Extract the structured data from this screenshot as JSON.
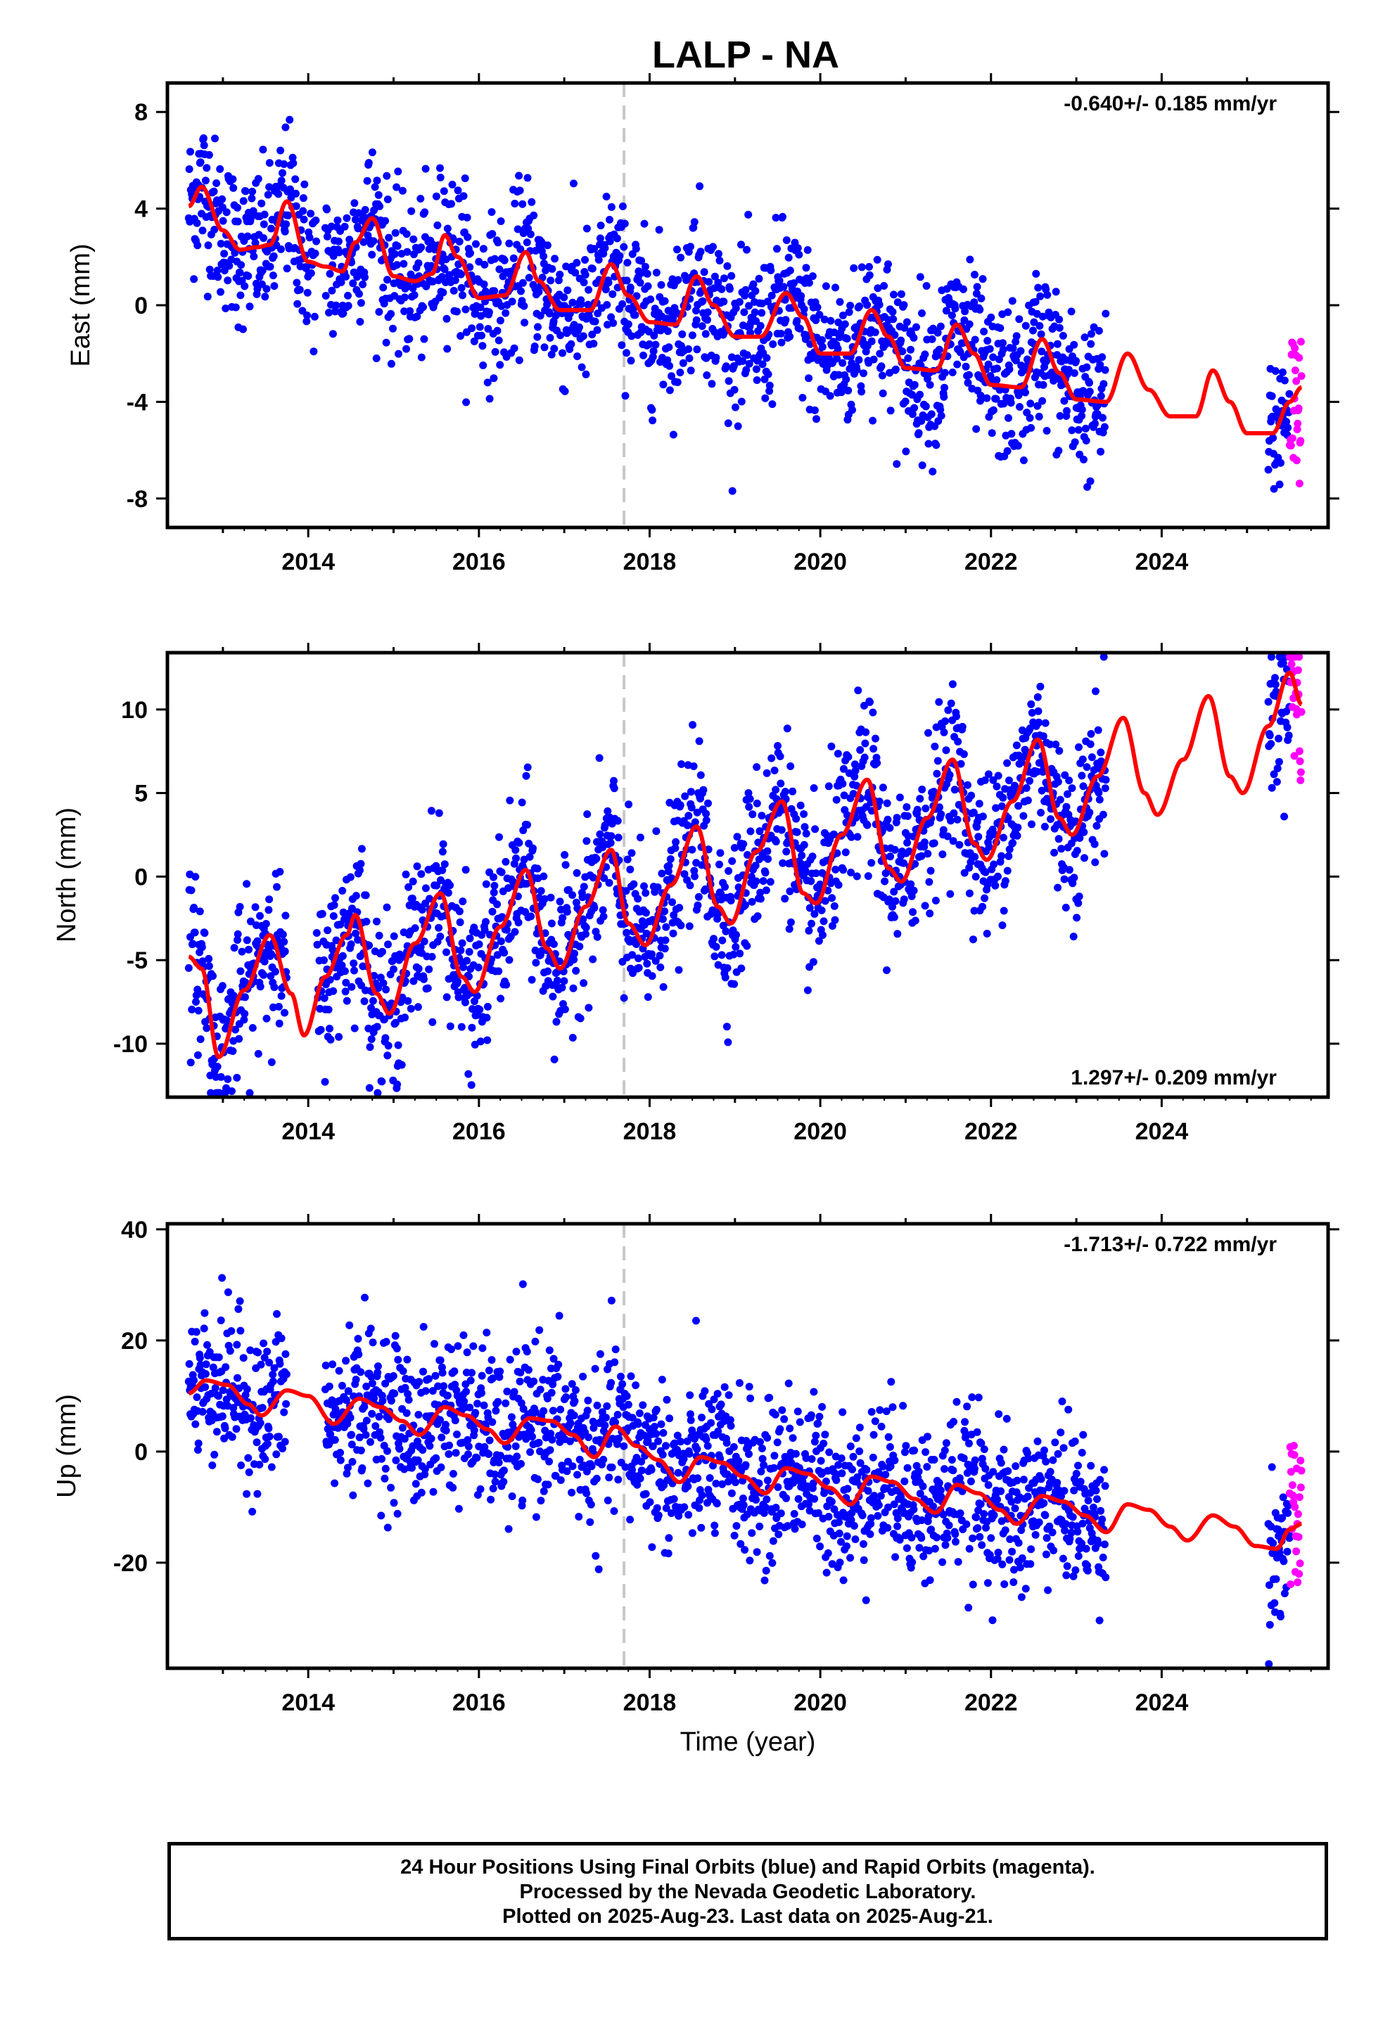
{
  "title": "LALP - NA",
  "xlabel": "Time (year)",
  "footer": {
    "line1": "24 Hour Positions Using Final Orbits (blue) and Rapid Orbits (magenta).",
    "line2": "Processed by the Nevada Geodetic Laboratory.",
    "line3": "Plotted on 2025-Aug-23. Last data on 2025-Aug-21."
  },
  "colors": {
    "final": "#0000ff",
    "rapid": "#ff00ff",
    "model": "#ff0000",
    "event_line": "#c8c8c8"
  },
  "chart_data": [
    {
      "type": "scatter",
      "component": "east",
      "ylabel": "East (mm)",
      "rate_label": "-0.640+/- 0.185 mm/yr",
      "xlim": [
        2012.35,
        2025.95
      ],
      "ylim": [
        -9.2,
        9.2
      ],
      "xticks": [
        2014,
        2016,
        2018,
        2020,
        2022,
        2024
      ],
      "yticks": [
        -8,
        -4,
        0,
        4,
        8
      ],
      "event_line_x": 2017.7,
      "data_ranges": [
        [
          2012.6,
          2014.1
        ],
        [
          2014.2,
          2023.35
        ],
        [
          2025.25,
          2025.64
        ]
      ],
      "rapid_range": [
        2025.5,
        2025.64
      ],
      "model_nodes": [
        [
          2012.6,
          4.1
        ],
        [
          2012.75,
          4.9
        ],
        [
          2013.0,
          3.1
        ],
        [
          2013.2,
          2.3
        ],
        [
          2013.4,
          2.4
        ],
        [
          2013.55,
          2.5
        ],
        [
          2013.75,
          4.3
        ],
        [
          2014.0,
          1.8
        ],
        [
          2014.2,
          1.6
        ],
        [
          2014.4,
          1.4
        ],
        [
          2014.55,
          2.6
        ],
        [
          2014.75,
          3.6
        ],
        [
          2015.0,
          1.2
        ],
        [
          2015.25,
          1.0
        ],
        [
          2015.45,
          1.3
        ],
        [
          2015.6,
          2.9
        ],
        [
          2015.75,
          2.0
        ],
        [
          2016.0,
          0.3
        ],
        [
          2016.3,
          0.4
        ],
        [
          2016.55,
          2.2
        ],
        [
          2016.7,
          1.0
        ],
        [
          2016.95,
          -0.2
        ],
        [
          2017.3,
          -0.2
        ],
        [
          2017.55,
          1.7
        ],
        [
          2017.75,
          0.4
        ],
        [
          2018.0,
          -0.7
        ],
        [
          2018.3,
          -0.8
        ],
        [
          2018.55,
          1.2
        ],
        [
          2018.75,
          0.0
        ],
        [
          2019.0,
          -1.3
        ],
        [
          2019.3,
          -1.3
        ],
        [
          2019.6,
          0.5
        ],
        [
          2019.8,
          -0.5
        ],
        [
          2020.0,
          -2.0
        ],
        [
          2020.35,
          -2.0
        ],
        [
          2020.6,
          -0.2
        ],
        [
          2020.8,
          -1.3
        ],
        [
          2021.0,
          -2.6
        ],
        [
          2021.35,
          -2.7
        ],
        [
          2021.6,
          -0.8
        ],
        [
          2021.8,
          -2.0
        ],
        [
          2022.0,
          -3.3
        ],
        [
          2022.35,
          -3.4
        ],
        [
          2022.6,
          -1.4
        ],
        [
          2022.8,
          -2.8
        ],
        [
          2023.0,
          -3.9
        ],
        [
          2023.35,
          -4.0
        ],
        [
          2023.6,
          -2.0
        ],
        [
          2023.85,
          -3.5
        ],
        [
          2024.1,
          -4.6
        ],
        [
          2024.4,
          -4.6
        ],
        [
          2024.6,
          -2.7
        ],
        [
          2024.8,
          -4.0
        ],
        [
          2025.0,
          -5.3
        ],
        [
          2025.3,
          -5.3
        ],
        [
          2025.5,
          -4.0
        ],
        [
          2025.64,
          -3.4
        ]
      ]
    },
    {
      "type": "scatter",
      "component": "north",
      "ylabel": "North (mm)",
      "rate_label": "1.297+/- 0.209 mm/yr",
      "xlim": [
        2012.35,
        2025.95
      ],
      "ylim": [
        -13.2,
        13.4
      ],
      "xticks": [
        2014,
        2016,
        2018,
        2020,
        2022,
        2024
      ],
      "yticks": [
        -10,
        -5,
        0,
        5,
        10
      ],
      "event_line_x": 2017.7,
      "data_ranges": [
        [
          2012.6,
          2013.75
        ],
        [
          2014.1,
          2023.35
        ],
        [
          2025.25,
          2025.64
        ]
      ],
      "rapid_range": [
        2025.5,
        2025.64
      ],
      "model_nodes": [
        [
          2012.6,
          -4.8
        ],
        [
          2012.75,
          -5.5
        ],
        [
          2012.95,
          -10.8
        ],
        [
          2013.25,
          -6.8
        ],
        [
          2013.55,
          -3.5
        ],
        [
          2013.8,
          -7.0
        ],
        [
          2013.95,
          -9.5
        ],
        [
          2014.2,
          -6.0
        ],
        [
          2014.45,
          -3.5
        ],
        [
          2014.55,
          -2.3
        ],
        [
          2014.8,
          -7.0
        ],
        [
          2014.95,
          -8.2
        ],
        [
          2015.25,
          -4.0
        ],
        [
          2015.55,
          -1.0
        ],
        [
          2015.8,
          -6.0
        ],
        [
          2015.95,
          -6.9
        ],
        [
          2016.25,
          -3.0
        ],
        [
          2016.55,
          0.4
        ],
        [
          2016.8,
          -4.3
        ],
        [
          2016.95,
          -5.5
        ],
        [
          2017.25,
          -1.8
        ],
        [
          2017.55,
          1.6
        ],
        [
          2017.75,
          -2.8
        ],
        [
          2017.95,
          -4.1
        ],
        [
          2018.25,
          -0.5
        ],
        [
          2018.55,
          3.0
        ],
        [
          2018.8,
          -1.8
        ],
        [
          2018.95,
          -2.8
        ],
        [
          2019.25,
          1.5
        ],
        [
          2019.55,
          4.5
        ],
        [
          2019.8,
          -1.0
        ],
        [
          2019.95,
          -1.6
        ],
        [
          2020.25,
          2.5
        ],
        [
          2020.55,
          5.8
        ],
        [
          2020.8,
          0.5
        ],
        [
          2020.95,
          -0.3
        ],
        [
          2021.25,
          3.5
        ],
        [
          2021.55,
          7.0
        ],
        [
          2021.8,
          2.0
        ],
        [
          2021.95,
          1.0
        ],
        [
          2022.25,
          4.5
        ],
        [
          2022.55,
          8.2
        ],
        [
          2022.8,
          3.5
        ],
        [
          2022.95,
          2.5
        ],
        [
          2023.25,
          6.0
        ],
        [
          2023.55,
          9.5
        ],
        [
          2023.8,
          5.0
        ],
        [
          2023.95,
          3.7
        ],
        [
          2024.25,
          7.0
        ],
        [
          2024.55,
          10.8
        ],
        [
          2024.8,
          6.0
        ],
        [
          2024.95,
          5.0
        ],
        [
          2025.25,
          9.0
        ],
        [
          2025.5,
          12.2
        ],
        [
          2025.64,
          10.3
        ]
      ]
    },
    {
      "type": "scatter",
      "component": "up",
      "ylabel": "Up (mm)",
      "rate_label": "-1.713+/- 0.722 mm/yr",
      "xlim": [
        2012.35,
        2025.95
      ],
      "ylim": [
        -39,
        41
      ],
      "xticks": [
        2014,
        2016,
        2018,
        2020,
        2022,
        2024
      ],
      "yticks": [
        -20,
        0,
        20,
        40
      ],
      "event_line_x": 2017.7,
      "data_ranges": [
        [
          2012.6,
          2013.75
        ],
        [
          2014.2,
          2023.35
        ],
        [
          2025.25,
          2025.64
        ]
      ],
      "rapid_range": [
        2025.5,
        2025.64
      ],
      "model_nodes": [
        [
          2012.6,
          10.5
        ],
        [
          2012.8,
          12.8
        ],
        [
          2013.05,
          12.0
        ],
        [
          2013.3,
          8.5
        ],
        [
          2013.45,
          6.5
        ],
        [
          2013.75,
          11.0
        ],
        [
          2014.0,
          10.0
        ],
        [
          2014.3,
          5.0
        ],
        [
          2014.6,
          9.5
        ],
        [
          2014.85,
          8.0
        ],
        [
          2015.1,
          5.5
        ],
        [
          2015.3,
          3.0
        ],
        [
          2015.6,
          8.0
        ],
        [
          2015.85,
          6.5
        ],
        [
          2016.1,
          4.0
        ],
        [
          2016.3,
          1.5
        ],
        [
          2016.6,
          6.0
        ],
        [
          2016.85,
          5.5
        ],
        [
          2017.1,
          3.0
        ],
        [
          2017.35,
          -1.0
        ],
        [
          2017.6,
          4.5
        ],
        [
          2017.85,
          1.0
        ],
        [
          2018.1,
          -1.5
        ],
        [
          2018.35,
          -5.5
        ],
        [
          2018.6,
          -1.0
        ],
        [
          2018.85,
          -2.0
        ],
        [
          2019.1,
          -4.5
        ],
        [
          2019.35,
          -7.5
        ],
        [
          2019.6,
          -3.0
        ],
        [
          2019.85,
          -4.0
        ],
        [
          2020.1,
          -6.5
        ],
        [
          2020.35,
          -9.5
        ],
        [
          2020.6,
          -4.5
        ],
        [
          2020.85,
          -5.5
        ],
        [
          2021.1,
          -8.5
        ],
        [
          2021.35,
          -11.0
        ],
        [
          2021.6,
          -6.0
        ],
        [
          2021.85,
          -7.5
        ],
        [
          2022.1,
          -10.5
        ],
        [
          2022.3,
          -13.0
        ],
        [
          2022.6,
          -8.0
        ],
        [
          2022.85,
          -9.0
        ],
        [
          2023.1,
          -11.5
        ],
        [
          2023.35,
          -14.5
        ],
        [
          2023.6,
          -9.5
        ],
        [
          2023.85,
          -10.5
        ],
        [
          2024.1,
          -13.5
        ],
        [
          2024.3,
          -16.0
        ],
        [
          2024.6,
          -11.5
        ],
        [
          2024.85,
          -13.5
        ],
        [
          2025.1,
          -17.0
        ],
        [
          2025.35,
          -17.5
        ],
        [
          2025.5,
          -14.0
        ],
        [
          2025.64,
          -13.0
        ]
      ]
    }
  ]
}
